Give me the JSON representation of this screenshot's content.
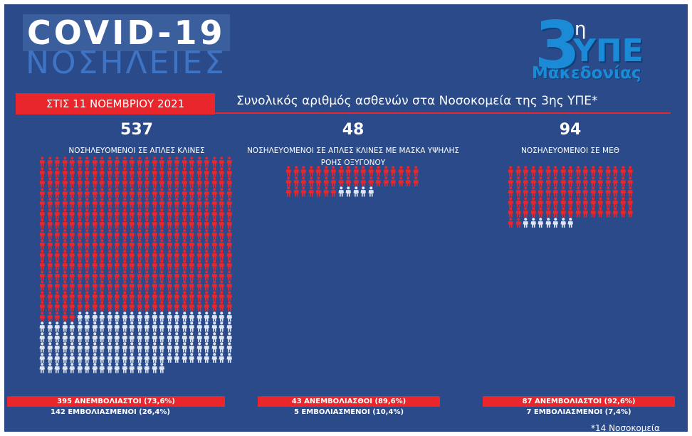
{
  "header": {
    "title": "COVID-19",
    "subtitle": "ΝΟΣΗΛΕΙΕΣ",
    "logo": {
      "number": "3",
      "superscript": "η",
      "main": "ΥΠΕ",
      "sub": "Μακεδονίας"
    },
    "date": "ΣΤΙΣ 11 ΝΟΕΜΒΡΙΟΥ 2021",
    "description": "Συνολικός αριθμός ασθενών στα Νοσοκομεία της 3ης ΥΠΕ*"
  },
  "colors": {
    "background": "#2a4a89",
    "accent_red": "#e8262b",
    "unvaccinated": "#e8262b",
    "vaccinated": "#dfe6f2"
  },
  "chart_data": {
    "type": "table",
    "sections": [
      {
        "total": "537",
        "label": "ΝΟΣΗΛΕΥΟΜΕΝΟΙ ΣΕ ΑΠΛΕΣ ΚΛΙΝΕΣ",
        "unvaccinated": 395,
        "vaccinated": 142,
        "unvaccinated_text": "395 ΑΝΕΜΒΟΛΙΑΣΤΟΙ (73,6%)",
        "vaccinated_text": "142 ΕΜΒΟΛΙΑΣΜΕΝΟΙ (26,4%)"
      },
      {
        "total": "48",
        "label": "ΝΟΣΗΛΕΥΟΜΕΝΟΙ ΣΕ ΑΠΛΕΣ ΚΛΙΝΕΣ ΜΕ ΜΑΣΚΑ ΥΨΗΛΗΣ ΡΟΗΣ ΟΞΥΓΟΝΟΥ",
        "unvaccinated": 43,
        "vaccinated": 5,
        "unvaccinated_text": "43 ΑΝΕΜΒΟΛΙΑΣΘΟΙ (89,6%)",
        "vaccinated_text": "5 ΕΜΒΟΛΙΑΣΜΕΝΟΙ (10,4%)"
      },
      {
        "total": "94",
        "label": "ΝΟΣΗΛΕΥΟΜΕΝΟΙ ΣΕ ΜΕΘ",
        "unvaccinated": 87,
        "vaccinated": 7,
        "unvaccinated_text": "87 ΑΝΕΜΒΟΛΙΑΣΤΟΙ (92,6%)",
        "vaccinated_text": "7 ΕΜΒΟΛΙΑΣΜΕΝΟΙ (7,4%)"
      }
    ]
  },
  "footnote": "*14 Νοσοκομεία"
}
